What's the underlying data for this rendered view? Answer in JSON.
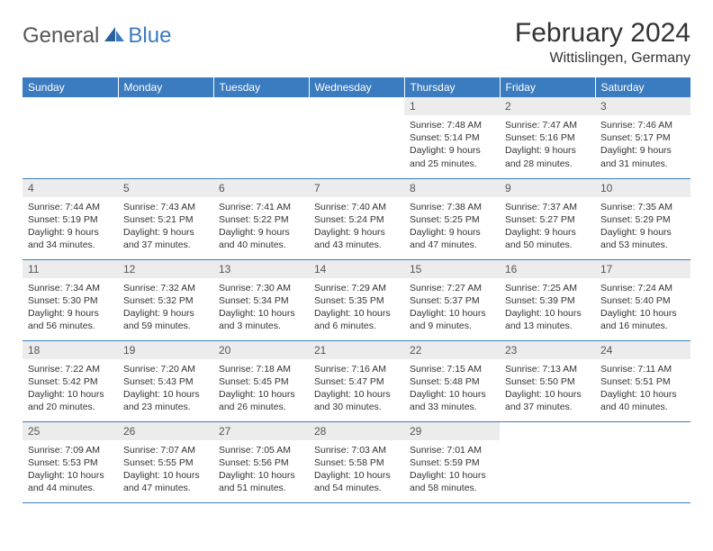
{
  "logo": {
    "general": "General",
    "blue": "Blue"
  },
  "title": "February 2024",
  "location": "Wittislingen, Germany",
  "colors": {
    "header_bg": "#3b7bbf",
    "header_text": "#ffffff",
    "daynum_bg": "#ececec",
    "border": "#3b7bbf",
    "body_text": "#333333"
  },
  "day_names": [
    "Sunday",
    "Monday",
    "Tuesday",
    "Wednesday",
    "Thursday",
    "Friday",
    "Saturday"
  ],
  "weeks": [
    [
      {
        "n": "",
        "lines": []
      },
      {
        "n": "",
        "lines": []
      },
      {
        "n": "",
        "lines": []
      },
      {
        "n": "",
        "lines": []
      },
      {
        "n": "1",
        "lines": [
          "Sunrise: 7:48 AM",
          "Sunset: 5:14 PM",
          "Daylight: 9 hours",
          "and 25 minutes."
        ]
      },
      {
        "n": "2",
        "lines": [
          "Sunrise: 7:47 AM",
          "Sunset: 5:16 PM",
          "Daylight: 9 hours",
          "and 28 minutes."
        ]
      },
      {
        "n": "3",
        "lines": [
          "Sunrise: 7:46 AM",
          "Sunset: 5:17 PM",
          "Daylight: 9 hours",
          "and 31 minutes."
        ]
      }
    ],
    [
      {
        "n": "4",
        "lines": [
          "Sunrise: 7:44 AM",
          "Sunset: 5:19 PM",
          "Daylight: 9 hours",
          "and 34 minutes."
        ]
      },
      {
        "n": "5",
        "lines": [
          "Sunrise: 7:43 AM",
          "Sunset: 5:21 PM",
          "Daylight: 9 hours",
          "and 37 minutes."
        ]
      },
      {
        "n": "6",
        "lines": [
          "Sunrise: 7:41 AM",
          "Sunset: 5:22 PM",
          "Daylight: 9 hours",
          "and 40 minutes."
        ]
      },
      {
        "n": "7",
        "lines": [
          "Sunrise: 7:40 AM",
          "Sunset: 5:24 PM",
          "Daylight: 9 hours",
          "and 43 minutes."
        ]
      },
      {
        "n": "8",
        "lines": [
          "Sunrise: 7:38 AM",
          "Sunset: 5:25 PM",
          "Daylight: 9 hours",
          "and 47 minutes."
        ]
      },
      {
        "n": "9",
        "lines": [
          "Sunrise: 7:37 AM",
          "Sunset: 5:27 PM",
          "Daylight: 9 hours",
          "and 50 minutes."
        ]
      },
      {
        "n": "10",
        "lines": [
          "Sunrise: 7:35 AM",
          "Sunset: 5:29 PM",
          "Daylight: 9 hours",
          "and 53 minutes."
        ]
      }
    ],
    [
      {
        "n": "11",
        "lines": [
          "Sunrise: 7:34 AM",
          "Sunset: 5:30 PM",
          "Daylight: 9 hours",
          "and 56 minutes."
        ]
      },
      {
        "n": "12",
        "lines": [
          "Sunrise: 7:32 AM",
          "Sunset: 5:32 PM",
          "Daylight: 9 hours",
          "and 59 minutes."
        ]
      },
      {
        "n": "13",
        "lines": [
          "Sunrise: 7:30 AM",
          "Sunset: 5:34 PM",
          "Daylight: 10 hours",
          "and 3 minutes."
        ]
      },
      {
        "n": "14",
        "lines": [
          "Sunrise: 7:29 AM",
          "Sunset: 5:35 PM",
          "Daylight: 10 hours",
          "and 6 minutes."
        ]
      },
      {
        "n": "15",
        "lines": [
          "Sunrise: 7:27 AM",
          "Sunset: 5:37 PM",
          "Daylight: 10 hours",
          "and 9 minutes."
        ]
      },
      {
        "n": "16",
        "lines": [
          "Sunrise: 7:25 AM",
          "Sunset: 5:39 PM",
          "Daylight: 10 hours",
          "and 13 minutes."
        ]
      },
      {
        "n": "17",
        "lines": [
          "Sunrise: 7:24 AM",
          "Sunset: 5:40 PM",
          "Daylight: 10 hours",
          "and 16 minutes."
        ]
      }
    ],
    [
      {
        "n": "18",
        "lines": [
          "Sunrise: 7:22 AM",
          "Sunset: 5:42 PM",
          "Daylight: 10 hours",
          "and 20 minutes."
        ]
      },
      {
        "n": "19",
        "lines": [
          "Sunrise: 7:20 AM",
          "Sunset: 5:43 PM",
          "Daylight: 10 hours",
          "and 23 minutes."
        ]
      },
      {
        "n": "20",
        "lines": [
          "Sunrise: 7:18 AM",
          "Sunset: 5:45 PM",
          "Daylight: 10 hours",
          "and 26 minutes."
        ]
      },
      {
        "n": "21",
        "lines": [
          "Sunrise: 7:16 AM",
          "Sunset: 5:47 PM",
          "Daylight: 10 hours",
          "and 30 minutes."
        ]
      },
      {
        "n": "22",
        "lines": [
          "Sunrise: 7:15 AM",
          "Sunset: 5:48 PM",
          "Daylight: 10 hours",
          "and 33 minutes."
        ]
      },
      {
        "n": "23",
        "lines": [
          "Sunrise: 7:13 AM",
          "Sunset: 5:50 PM",
          "Daylight: 10 hours",
          "and 37 minutes."
        ]
      },
      {
        "n": "24",
        "lines": [
          "Sunrise: 7:11 AM",
          "Sunset: 5:51 PM",
          "Daylight: 10 hours",
          "and 40 minutes."
        ]
      }
    ],
    [
      {
        "n": "25",
        "lines": [
          "Sunrise: 7:09 AM",
          "Sunset: 5:53 PM",
          "Daylight: 10 hours",
          "and 44 minutes."
        ]
      },
      {
        "n": "26",
        "lines": [
          "Sunrise: 7:07 AM",
          "Sunset: 5:55 PM",
          "Daylight: 10 hours",
          "and 47 minutes."
        ]
      },
      {
        "n": "27",
        "lines": [
          "Sunrise: 7:05 AM",
          "Sunset: 5:56 PM",
          "Daylight: 10 hours",
          "and 51 minutes."
        ]
      },
      {
        "n": "28",
        "lines": [
          "Sunrise: 7:03 AM",
          "Sunset: 5:58 PM",
          "Daylight: 10 hours",
          "and 54 minutes."
        ]
      },
      {
        "n": "29",
        "lines": [
          "Sunrise: 7:01 AM",
          "Sunset: 5:59 PM",
          "Daylight: 10 hours",
          "and 58 minutes."
        ]
      },
      {
        "n": "",
        "lines": []
      },
      {
        "n": "",
        "lines": []
      }
    ]
  ]
}
